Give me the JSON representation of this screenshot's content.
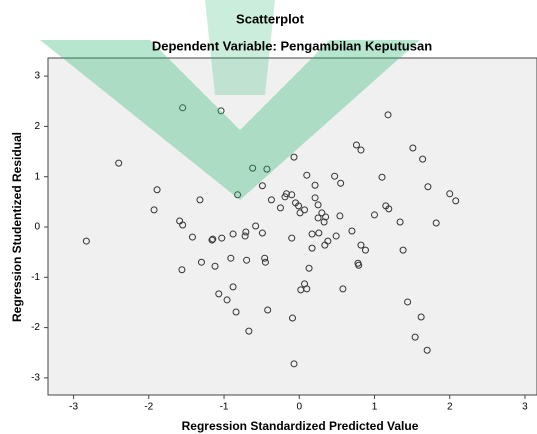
{
  "chart_data": {
    "type": "scatter",
    "title": "Scatterplot",
    "subtitle": "Dependent Variable: Pengambilan Keputusan",
    "x_label": "Regression Standardized Predicted Value",
    "y_label": "Regression Studentized Residual",
    "color": "#333333",
    "xlim": [
      -3.34,
      3.16
    ],
    "ylim": [
      -3.34,
      3.36
    ],
    "xticks": [
      -3,
      -2,
      -1,
      0,
      1,
      2,
      3
    ],
    "yticks": [
      -3,
      -2,
      -1,
      0,
      1,
      2,
      3
    ],
    "x": [
      -1.55,
      -1.04,
      1.18,
      -2.4,
      0.76,
      0.82,
      1.51,
      1.64,
      -0.07,
      -0.43,
      -0.62,
      1.1,
      0.47,
      0.55,
      0.1,
      0.21,
      -0.49,
      1.71,
      -0.82,
      -0.37,
      -1.89,
      -1.32,
      2.0,
      2.08,
      -0.17,
      -0.1,
      -0.19,
      -0.05,
      0.07,
      0.21,
      0.25,
      -0.25,
      -0.01,
      0.01,
      1.15,
      1.19,
      -1.93,
      0.54,
      0.25,
      0.3,
      0.33,
      0.35,
      1.34,
      1.0,
      -1.59,
      -1.55,
      1.82,
      -0.58,
      -0.88,
      -1.03,
      -1.42,
      -1.15,
      -0.71,
      -0.49,
      -0.72,
      0.26,
      0.17,
      0.49,
      -0.1,
      0.38,
      -1.16,
      0.7,
      0.82,
      0.88,
      0.34,
      0.17,
      1.38,
      -0.91,
      -0.7,
      -0.46,
      -1.3,
      -0.45,
      -1.12,
      -1.56,
      0.13,
      0.78,
      0.79,
      -0.88,
      0.07,
      0.58,
      -1.07,
      0.02,
      0.1,
      -0.42,
      -0.96,
      1.44,
      -0.84,
      1.62,
      -0.67,
      -0.09,
      1.54,
      1.7,
      -0.07,
      -2.83
    ],
    "values": [
      2.37,
      2.31,
      2.23,
      1.27,
      1.63,
      1.53,
      1.57,
      1.35,
      1.39,
      1.15,
      1.17,
      0.99,
      1.01,
      0.87,
      1.03,
      0.83,
      0.82,
      0.8,
      0.64,
      0.54,
      0.74,
      0.54,
      0.66,
      0.52,
      0.66,
      0.64,
      0.6,
      0.48,
      0.34,
      0.58,
      0.44,
      0.38,
      0.42,
      0.28,
      0.42,
      0.36,
      0.34,
      0.22,
      0.18,
      0.28,
      0.1,
      0.2,
      0.1,
      0.24,
      0.12,
      0.04,
      0.08,
      0.02,
      -0.14,
      -0.22,
      -0.2,
      -0.24,
      -0.1,
      -0.12,
      -0.18,
      -0.12,
      -0.14,
      -0.18,
      -0.22,
      -0.28,
      -0.26,
      -0.08,
      -0.36,
      -0.46,
      -0.36,
      -0.42,
      -0.46,
      -0.62,
      -0.66,
      -0.62,
      -0.7,
      -0.7,
      -0.78,
      -0.85,
      -0.82,
      -0.72,
      -0.76,
      -1.19,
      -1.13,
      -1.23,
      -1.33,
      -1.25,
      -1.23,
      -1.65,
      -1.45,
      -1.49,
      -1.69,
      -1.79,
      -2.07,
      -1.81,
      -2.19,
      -2.45,
      -2.72,
      -0.28
    ]
  }
}
